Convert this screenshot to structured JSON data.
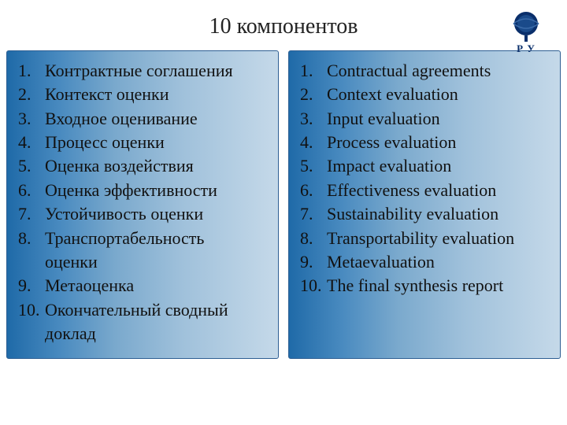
{
  "title": "10 компонентов",
  "logo": {
    "letters": "Р У",
    "color": "#0a2f6b"
  },
  "panels": {
    "left": {
      "gradient_colors": [
        "#1f6aa8",
        "#4a8bc0",
        "#7aa9cd",
        "#a0c1db",
        "#c5d9e9"
      ],
      "border_color": "#2e5f93",
      "text_color": "#111111",
      "font_size": 22,
      "items": [
        {
          "n": "1.",
          "t": "Контрактные соглашения"
        },
        {
          "n": "2.",
          "t": "Контекст оценки"
        },
        {
          "n": "3.",
          "t": "Входное оценивание"
        },
        {
          "n": "4.",
          "t": "Процесс оценки"
        },
        {
          "n": "5.",
          "t": "Оценка воздействия"
        },
        {
          "n": "6.",
          "t": "Оценка эффективности"
        },
        {
          "n": "7.",
          "t": "Устойчивость оценки"
        },
        {
          "n": "8.",
          "t": "Транспортабельность"
        },
        {
          "n": "",
          "t": "оценки",
          "indent": true
        },
        {
          "n": "9.",
          "t": "Метаоценка"
        },
        {
          "n": "10.",
          "t": "Окончательный сводный"
        },
        {
          "n": "",
          "t": "доклад",
          "indent": true
        }
      ]
    },
    "right": {
      "gradient_colors": [
        "#1f6aa8",
        "#4a8bc0",
        "#7aa9cd",
        "#a0c1db",
        "#c5d9e9"
      ],
      "border_color": "#2e5f93",
      "text_color": "#111111",
      "font_size": 22,
      "items": [
        {
          "n": "1.",
          "t": "Contractual agreements"
        },
        {
          "n": "2.",
          "t": "Context evaluation"
        },
        {
          "n": "3.",
          "t": "Input evaluation"
        },
        {
          "n": "4.",
          "t": "Process evaluation"
        },
        {
          "n": "5.",
          "t": "Impact evaluation"
        },
        {
          "n": "6.",
          "t": "Effectiveness evaluation"
        },
        {
          "n": "7.",
          "t": "Sustainability evaluation"
        },
        {
          "n": "8.",
          "t": "Transportability evaluation"
        },
        {
          "n": "9.",
          "t": "Metaevaluation"
        },
        {
          "n": "10.",
          "t": "The final synthesis report"
        }
      ]
    }
  }
}
